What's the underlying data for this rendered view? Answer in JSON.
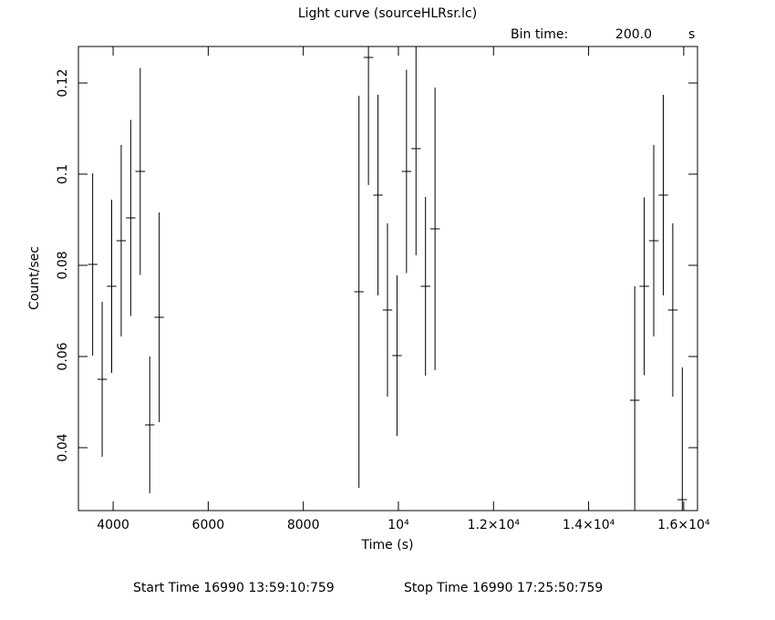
{
  "chart_data": {
    "type": "errorbar",
    "title": "Light curve (sourceHLRsr.lc)",
    "bin_time": {
      "label": "Bin time:",
      "value": "200.0",
      "unit": "s"
    },
    "xlabel": "Time (s)",
    "ylabel": "Count/sec",
    "footer": {
      "start": "Start Time 16990 13:59:10:759",
      "stop": "Stop Time 16990 17:25:50:759"
    },
    "x": [
      3570,
      3770,
      3970,
      4170,
      4370,
      4570,
      4770,
      4970,
      9170,
      9370,
      9570,
      9770,
      9970,
      10170,
      10370,
      10570,
      10770,
      14970,
      15170,
      15370,
      15570,
      15770,
      15970
    ],
    "series": [
      {
        "color": "#000000",
        "values": [
          0.0802,
          0.055,
          0.0754,
          0.0854,
          0.0904,
          0.1006,
          0.045,
          0.0686,
          0.0742,
          0.1256,
          0.0954,
          0.0702,
          0.0602,
          0.1006,
          0.1056,
          0.0754,
          0.088,
          0.0504,
          0.0754,
          0.0854,
          0.0954,
          0.0702,
          0.0286
        ],
        "errors": [
          0.02,
          0.017,
          0.019,
          0.021,
          0.0215,
          0.0227,
          0.015,
          0.023,
          0.043,
          0.028,
          0.022,
          0.019,
          0.0176,
          0.0223,
          0.0234,
          0.0196,
          0.031,
          0.025,
          0.0195,
          0.021,
          0.022,
          0.019,
          0.029
        ]
      }
    ],
    "xlim": [
      3270,
      16290
    ],
    "ylim": [
      0.0262,
      0.128
    ],
    "xticks": [
      4000,
      6000,
      8000,
      {
        "value": 10000,
        "label": "10⁴"
      },
      {
        "value": 12000,
        "label": "1.2×10⁴"
      },
      {
        "value": 14000,
        "label": "1.4×10⁴"
      },
      {
        "value": 16000,
        "label": "1.6×10⁴"
      }
    ],
    "yticks": [
      0.04,
      0.06,
      0.08,
      0.1,
      0.12
    ]
  }
}
